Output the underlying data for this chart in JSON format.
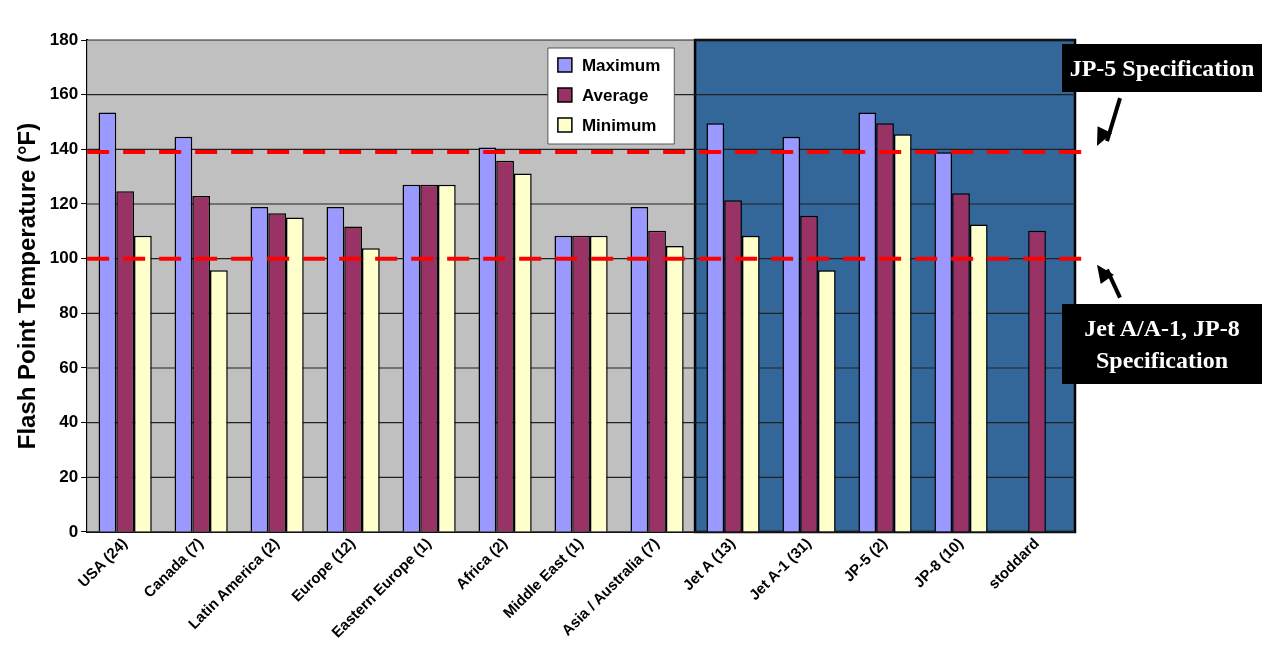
{
  "chart_data": {
    "type": "bar",
    "ylabel": "Flash Point Temperature (°F)",
    "categories": [
      "USA (24)",
      "Canada (7)",
      "Latin America (2)",
      "Europe (12)",
      "Eastern Europe (1)",
      "Africa (2)",
      "Middle East (1)",
      "Asia / Australia (7)",
      "Jet A (13)",
      "Jet A-1 (31)",
      "JP-5 (2)",
      "JP-8 (10)",
      "stoddard"
    ],
    "series": [
      {
        "name": "Maximum",
        "color": "#9999ff",
        "values": [
          153.5,
          144.6,
          118.9,
          118.9,
          127,
          140.7,
          108.4,
          118.9,
          149.5,
          144.6,
          153.5,
          138.9,
          null
        ]
      },
      {
        "name": "Average",
        "color": "#993366",
        "values": [
          124.7,
          122.9,
          116.6,
          111.8,
          127,
          135.8,
          108.4,
          110.2,
          121.4,
          115.7,
          149.5,
          123.9,
          110.2
        ]
      },
      {
        "name": "Minimum",
        "color": "#ffffcc",
        "values": [
          108.4,
          95.8,
          115.1,
          103.8,
          127,
          131.2,
          108.4,
          104.6,
          108.4,
          95.8,
          145.5,
          112.5,
          null
        ]
      }
    ],
    "ylim": [
      0,
      180
    ],
    "yticks": [
      0,
      20,
      40,
      60,
      80,
      100,
      120,
      140,
      160,
      180
    ],
    "grid": "y",
    "legend": "top",
    "bands": [
      {
        "axis": "x",
        "from": "Jet A (13)",
        "to": "stoddard",
        "color": "#336699"
      }
    ],
    "ref_lines": [
      {
        "axis": "y",
        "value": 139,
        "label": "JP-5 Specification",
        "color": "#ff0000",
        "line_style": "dashed"
      },
      {
        "axis": "y",
        "value": 100,
        "label": "Jet A/A-1, JP-8 Specification",
        "color": "#ff0000",
        "line_style": "dashed"
      }
    ]
  }
}
